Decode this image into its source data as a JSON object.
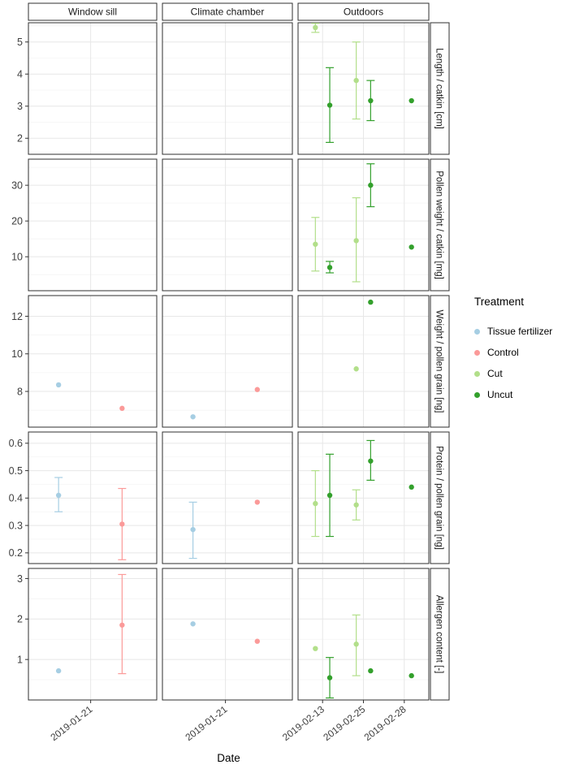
{
  "chart_data": {
    "type": "scatter",
    "title": "",
    "xlabel": "Date",
    "legend": {
      "title": "Treatment",
      "position": "right",
      "items": [
        {
          "label": "Tissue fertilizer",
          "color": "#A6CEE3"
        },
        {
          "label": "Control",
          "color": "#FB9A99"
        },
        {
          "label": "Cut",
          "color": "#B2DF8A"
        },
        {
          "label": "Uncut",
          "color": "#33A02C"
        }
      ]
    },
    "facet_columns": [
      {
        "label": "Window sill",
        "dates": [
          "2019-01-21"
        ]
      },
      {
        "label": "Climate chamber",
        "dates": [
          "2019-01-21"
        ]
      },
      {
        "label": "Outdoors",
        "dates": [
          "2019-02-13",
          "2019-02-25",
          "2019-02-28"
        ]
      }
    ],
    "facet_rows": [
      {
        "label": "Length / catkin [cm]",
        "ylim": [
          1.5,
          5.6
        ],
        "yticks": [
          2,
          3,
          4,
          5
        ]
      },
      {
        "label": "Pollen weight / catkin [mg]",
        "ylim": [
          0.5,
          37.3
        ],
        "yticks": [
          10,
          20,
          30
        ]
      },
      {
        "label": "Weight / pollen grain [ng]",
        "ylim": [
          6.1,
          13.1
        ],
        "yticks": [
          8,
          10,
          12
        ]
      },
      {
        "label": "Protein / pollen grain [ng]",
        "ylim": [
          0.161,
          0.641
        ],
        "yticks": [
          0.2,
          0.3,
          0.4,
          0.5,
          0.6
        ]
      },
      {
        "label": "Allergen content [-]",
        "ylim": [
          0.0,
          3.25
        ],
        "yticks": [
          1,
          2,
          3
        ]
      }
    ],
    "points": [
      {
        "row": 0,
        "col": 2,
        "date": "2019-02-13",
        "treatment": "Cut",
        "y": 5.45,
        "ymin": 5.3,
        "ymax": 5.58
      },
      {
        "row": 0,
        "col": 2,
        "date": "2019-02-13",
        "treatment": "Uncut",
        "y": 3.03,
        "ymin": 1.87,
        "ymax": 4.2
      },
      {
        "row": 0,
        "col": 2,
        "date": "2019-02-25",
        "treatment": "Cut",
        "y": 3.8,
        "ymin": 2.6,
        "ymax": 5.0
      },
      {
        "row": 0,
        "col": 2,
        "date": "2019-02-25",
        "treatment": "Uncut",
        "y": 3.17,
        "ymin": 2.55,
        "ymax": 3.8
      },
      {
        "row": 0,
        "col": 2,
        "date": "2019-02-28",
        "treatment": "Uncut",
        "y": 3.17
      },
      {
        "row": 1,
        "col": 2,
        "date": "2019-02-13",
        "treatment": "Cut",
        "y": 13.5,
        "ymin": 6.0,
        "ymax": 21.0
      },
      {
        "row": 1,
        "col": 2,
        "date": "2019-02-13",
        "treatment": "Uncut",
        "y": 7.0,
        "ymin": 5.5,
        "ymax": 8.7
      },
      {
        "row": 1,
        "col": 2,
        "date": "2019-02-25",
        "treatment": "Cut",
        "y": 14.5,
        "ymin": 3.0,
        "ymax": 26.5
      },
      {
        "row": 1,
        "col": 2,
        "date": "2019-02-25",
        "treatment": "Uncut",
        "y": 30.0,
        "ymin": 24.0,
        "ymax": 36.0
      },
      {
        "row": 1,
        "col": 2,
        "date": "2019-02-28",
        "treatment": "Uncut",
        "y": 12.7
      },
      {
        "row": 2,
        "col": 0,
        "date": "2019-01-21",
        "treatment": "Tissue fertilizer",
        "y": 8.35
      },
      {
        "row": 2,
        "col": 0,
        "date": "2019-01-21",
        "treatment": "Control",
        "y": 7.1
      },
      {
        "row": 2,
        "col": 1,
        "date": "2019-01-21",
        "treatment": "Tissue fertilizer",
        "y": 6.65
      },
      {
        "row": 2,
        "col": 1,
        "date": "2019-01-21",
        "treatment": "Control",
        "y": 8.1
      },
      {
        "row": 2,
        "col": 2,
        "date": "2019-02-25",
        "treatment": "Cut",
        "y": 9.2
      },
      {
        "row": 2,
        "col": 2,
        "date": "2019-02-25",
        "treatment": "Uncut",
        "y": 12.75
      },
      {
        "row": 3,
        "col": 0,
        "date": "2019-01-21",
        "treatment": "Tissue fertilizer",
        "y": 0.41,
        "ymin": 0.35,
        "ymax": 0.475
      },
      {
        "row": 3,
        "col": 0,
        "date": "2019-01-21",
        "treatment": "Control",
        "y": 0.305,
        "ymin": 0.175,
        "ymax": 0.435
      },
      {
        "row": 3,
        "col": 1,
        "date": "2019-01-21",
        "treatment": "Tissue fertilizer",
        "y": 0.285,
        "ymin": 0.18,
        "ymax": 0.385
      },
      {
        "row": 3,
        "col": 1,
        "date": "2019-01-21",
        "treatment": "Control",
        "y": 0.385
      },
      {
        "row": 3,
        "col": 2,
        "date": "2019-02-13",
        "treatment": "Cut",
        "y": 0.38,
        "ymin": 0.26,
        "ymax": 0.5
      },
      {
        "row": 3,
        "col": 2,
        "date": "2019-02-13",
        "treatment": "Uncut",
        "y": 0.41,
        "ymin": 0.26,
        "ymax": 0.56
      },
      {
        "row": 3,
        "col": 2,
        "date": "2019-02-25",
        "treatment": "Cut",
        "y": 0.375,
        "ymin": 0.32,
        "ymax": 0.43
      },
      {
        "row": 3,
        "col": 2,
        "date": "2019-02-25",
        "treatment": "Uncut",
        "y": 0.535,
        "ymin": 0.465,
        "ymax": 0.61
      },
      {
        "row": 3,
        "col": 2,
        "date": "2019-02-28",
        "treatment": "Uncut",
        "y": 0.44
      },
      {
        "row": 4,
        "col": 0,
        "date": "2019-01-21",
        "treatment": "Tissue fertilizer",
        "y": 0.72
      },
      {
        "row": 4,
        "col": 0,
        "date": "2019-01-21",
        "treatment": "Control",
        "y": 1.85,
        "ymin": 0.65,
        "ymax": 3.1
      },
      {
        "row": 4,
        "col": 1,
        "date": "2019-01-21",
        "treatment": "Tissue fertilizer",
        "y": 1.88
      },
      {
        "row": 4,
        "col": 1,
        "date": "2019-01-21",
        "treatment": "Control",
        "y": 1.45
      },
      {
        "row": 4,
        "col": 2,
        "date": "2019-02-13",
        "treatment": "Cut",
        "y": 1.27
      },
      {
        "row": 4,
        "col": 2,
        "date": "2019-02-13",
        "treatment": "Uncut",
        "y": 0.55,
        "ymin": 0.05,
        "ymax": 1.05
      },
      {
        "row": 4,
        "col": 2,
        "date": "2019-02-25",
        "treatment": "Cut",
        "y": 1.38,
        "ymin": 0.6,
        "ymax": 2.1
      },
      {
        "row": 4,
        "col": 2,
        "date": "2019-02-25",
        "treatment": "Uncut",
        "y": 0.72
      },
      {
        "row": 4,
        "col": 2,
        "date": "2019-02-28",
        "treatment": "Uncut",
        "y": 0.6
      }
    ]
  }
}
